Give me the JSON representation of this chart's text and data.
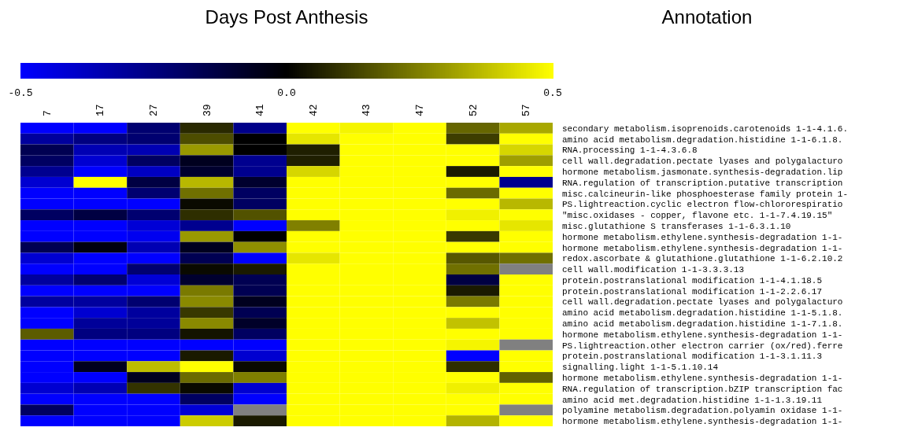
{
  "chart_data": {
    "type": "heatmap",
    "title": "Days Post Anthesis",
    "annotations": [
      "Annotation"
    ],
    "categories": [
      "7",
      "17",
      "27",
      "39",
      "41",
      "42",
      "43",
      "47",
      "52",
      "57"
    ],
    "y_categories": [
      "secondary metabolism.isoprenoids.carotenoids 1-1-4.1.6.",
      "amino acid metabolism.degradation.histidine 1-1-6.1.8.",
      "RNA.processing 1-1-4.3.6.8",
      "cell wall.degradation.pectate lyases and polygalacturo",
      "hormone metabolism.jasmonate.synthesis-degradation.lip",
      "RNA.regulation of transcription.putative transcription",
      "misc.calcineurin-like phosphoesterase family protein 1-",
      "PS.lightreaction.cyclic electron flow-chlororespiratio",
      "\"misc.oxidases - copper, flavone etc. 1-1-7.4.19.15\"",
      "misc.glutathione S transferases 1-1-6.3.1.10",
      "hormone metabolism.ethylene.synthesis-degradation 1-1-",
      "hormone metabolism.ethylene.synthesis-degradation 1-1-",
      "redox.ascorbate & glutathione.glutathione 1-1-6.2.10.2",
      "cell wall.modification 1-1-3.3.3.13",
      "protein.postranslational modification 1-1-4.1.18.5",
      "protein.postranslational modification 1-1-2.2.6.17",
      "cell wall.degradation.pectate lyases and polygalacturo",
      "amino acid metabolism.degradation.histidine 1-1-5.1.8.",
      "amino acid metabolism.degradation.histidine 1-1-7.1.8.",
      "hormone metabolism.ethylene.synthesis-degradation 1-1-",
      "PS.lightreaction.other electron carrier (ox/red).ferre",
      "protein.postranslational modification 1-1-3.1.11.3",
      "signalling.light 1-1-5.1.10.14",
      "hormone metabolism.ethylene.synthesis-degradation 1-1-",
      "RNA.regulation of transcription.bZIP transcription fac",
      "amino acid met.degradation.histidine 1-1-1.3.19.11",
      "polyamine metabolism.degradation.polyamin oxidase 1-1-",
      "hormone metabolism.ethylene.synthesis-degradation 1-1-"
    ],
    "cells": [
      [
        -0.5,
        -0.5,
        -0.22,
        0.08,
        -0.27,
        0.5,
        0.48,
        0.5,
        0.2,
        0.33
      ],
      [
        -0.31,
        -0.25,
        -0.22,
        0.15,
        0,
        0.45,
        0.5,
        0.5,
        0.12,
        0.5
      ],
      [
        -0.16,
        -0.35,
        -0.35,
        0.3,
        0,
        0.06,
        0.5,
        0.5,
        0.5,
        0.42
      ],
      [
        -0.19,
        -0.41,
        -0.19,
        -0.06,
        -0.28,
        0.06,
        0.5,
        0.5,
        0.5,
        0.31
      ],
      [
        -0.28,
        -0.5,
        -0.38,
        -0.09,
        -0.28,
        0.42,
        0.5,
        0.5,
        0.05,
        0.5
      ],
      [
        -0.41,
        0.5,
        -0.13,
        0.36,
        -0.09,
        0.5,
        0.5,
        0.5,
        0.5,
        -0.28
      ],
      [
        -0.5,
        -0.5,
        -0.22,
        0.22,
        -0.19,
        0.5,
        0.5,
        0.5,
        0.21,
        0.5
      ],
      [
        -0.5,
        -0.5,
        -0.5,
        0.02,
        -0.19,
        0.5,
        0.5,
        0.5,
        0.5,
        0.36
      ],
      [
        -0.19,
        -0.13,
        -0.22,
        0.09,
        0.16,
        0.5,
        0.5,
        0.5,
        0.47,
        0.5
      ],
      [
        -0.5,
        -0.5,
        -0.42,
        -0.28,
        -0.5,
        0.25,
        0.5,
        0.5,
        0.5,
        0.45
      ],
      [
        -0.5,
        -0.5,
        -0.47,
        0.3,
        0,
        0.5,
        0.5,
        0.5,
        0.11,
        0.5
      ],
      [
        -0.16,
        -0.03,
        -0.35,
        -0.06,
        0.28,
        0.5,
        0.5,
        0.5,
        0.5,
        0.5
      ],
      [
        -0.41,
        -0.5,
        -0.5,
        -0.16,
        -0.5,
        0.45,
        0.5,
        0.5,
        0.17,
        0.22
      ],
      [
        -0.5,
        -0.5,
        -0.22,
        0.02,
        0.05,
        0.5,
        0.5,
        0.5,
        0.22,
        null
      ],
      [
        -0.31,
        -0.22,
        -0.42,
        -0.09,
        -0.16,
        0.5,
        0.5,
        0.5,
        -0.13,
        0.5
      ],
      [
        -0.5,
        -0.5,
        -0.5,
        0.24,
        -0.16,
        0.5,
        0.5,
        0.5,
        0.05,
        0.5
      ],
      [
        -0.31,
        -0.31,
        -0.22,
        0.27,
        -0.06,
        0.5,
        0.5,
        0.5,
        0.24,
        0.5
      ],
      [
        -0.5,
        -0.41,
        -0.31,
        0.11,
        -0.16,
        0.5,
        0.5,
        0.5,
        0.5,
        0.5
      ],
      [
        -0.5,
        -0.3,
        -0.3,
        0.27,
        -0.08,
        0.5,
        0.5,
        0.5,
        0.38,
        0.5
      ],
      [
        0.18,
        -0.25,
        -0.25,
        0.04,
        -0.19,
        0.5,
        0.5,
        0.5,
        0.5,
        0.5
      ],
      [
        -0.5,
        -0.5,
        -0.5,
        -0.5,
        -0.5,
        0.5,
        0.5,
        0.5,
        0.48,
        null
      ],
      [
        -0.5,
        -0.5,
        -0.5,
        0.05,
        -0.41,
        0.5,
        0.5,
        0.5,
        -0.5,
        0.5
      ],
      [
        -0.5,
        -0.06,
        0.37,
        0.5,
        0.02,
        0.5,
        0.5,
        0.5,
        0.09,
        0.5
      ],
      [
        -0.5,
        -0.5,
        -0.06,
        0.21,
        0.25,
        0.5,
        0.5,
        0.5,
        0.5,
        0.19
      ],
      [
        -0.41,
        -0.35,
        0.1,
        0.02,
        -0.41,
        0.5,
        0.5,
        0.5,
        0.47,
        0.5
      ],
      [
        -0.5,
        -0.5,
        -0.5,
        -0.19,
        -0.5,
        0.5,
        0.5,
        0.5,
        0.5,
        0.5
      ],
      [
        -0.19,
        -0.5,
        -0.5,
        -0.42,
        null,
        0.5,
        0.5,
        0.5,
        0.5,
        null
      ],
      [
        -0.5,
        -0.5,
        -0.5,
        0.4,
        0.05,
        0.5,
        0.5,
        0.5,
        0.35,
        0.5
      ]
    ],
    "clim": [
      -0.5,
      0.5
    ],
    "cticks": [
      -0.5,
      {
        "value": 0,
        "label": "0.0"
      },
      0.5
    ]
  }
}
